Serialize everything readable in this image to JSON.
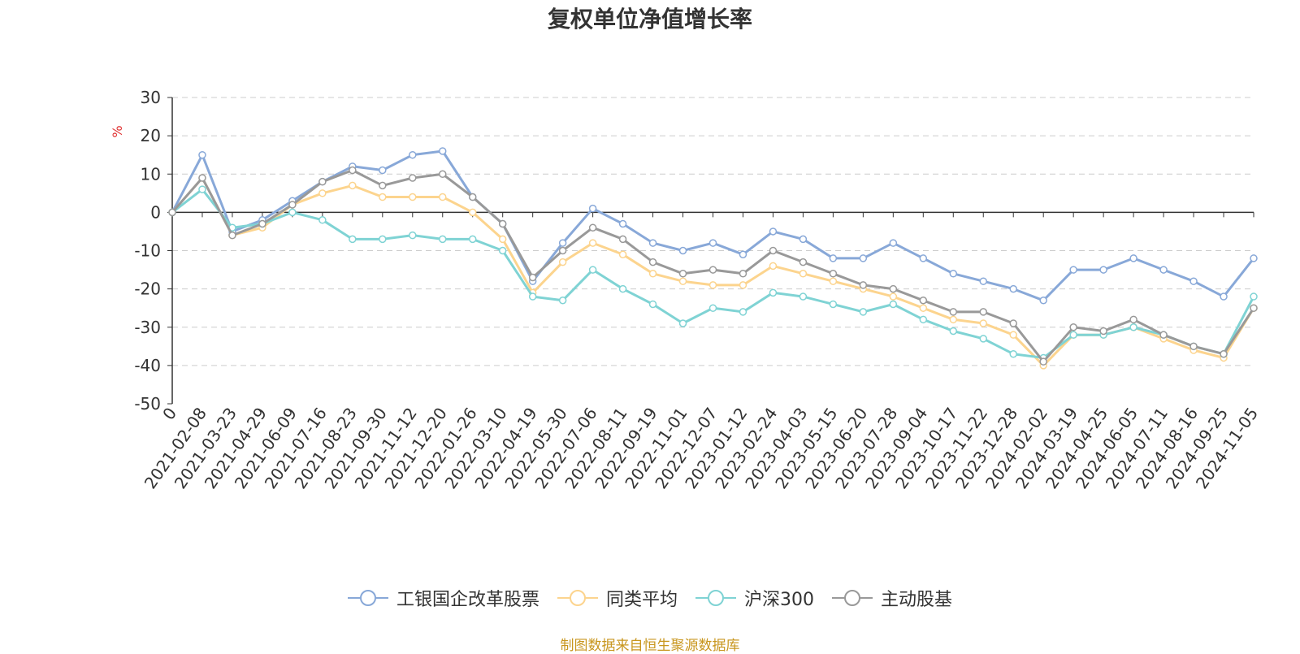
{
  "title": "复权单位净值增长率",
  "source_note": "制图数据来自恒生聚源数据库",
  "chart_data": {
    "type": "line",
    "ylabel": "%",
    "ylim": [
      -50,
      30
    ],
    "yticks": [
      30,
      20,
      10,
      0,
      -10,
      -20,
      -30,
      -40,
      -50
    ],
    "grid": true,
    "legend_position": "bottom",
    "x_ticks": [
      "0",
      "2021-02-08",
      "2021-03-23",
      "2021-04-29",
      "2021-06-09",
      "2021-07-16",
      "2021-08-23",
      "2021-09-30",
      "2021-11-12",
      "2021-12-20",
      "2022-01-26",
      "2022-03-10",
      "2022-04-19",
      "2022-05-30",
      "2022-07-06",
      "2022-08-11",
      "2022-09-19",
      "2022-11-01",
      "2022-12-07",
      "2023-01-12",
      "2023-02-24",
      "2023-04-03",
      "2023-05-15",
      "2023-06-20",
      "2023-07-28",
      "2023-09-04",
      "2023-10-17",
      "2023-11-22",
      "2023-12-28",
      "2024-02-02",
      "2024-03-19",
      "2024-04-25",
      "2024-06-05",
      "2024-07-11",
      "2024-08-16",
      "2024-09-25",
      "2024-11-05"
    ],
    "series": [
      {
        "name": "工银国企改革股票",
        "color": "#88a8d8",
        "values": [
          0,
          15,
          -5,
          -2,
          3,
          8,
          12,
          11,
          15,
          16,
          4,
          -3,
          -18,
          -8,
          1,
          -3,
          -8,
          -10,
          -8,
          -11,
          -5,
          -7,
          -12,
          -12,
          -8,
          -12,
          -16,
          -18,
          -20,
          -23,
          -15,
          -15,
          -12,
          -15,
          -18,
          -22,
          -12
        ]
      },
      {
        "name": "同类平均",
        "color": "#fcd48e",
        "values": [
          0,
          9,
          -6,
          -4,
          2,
          5,
          7,
          4,
          4,
          4,
          0,
          -7,
          -21,
          -13,
          -8,
          -11,
          -16,
          -18,
          -19,
          -19,
          -14,
          -16,
          -18,
          -20,
          -22,
          -25,
          -28,
          -29,
          -32,
          -40,
          -32,
          -32,
          -30,
          -33,
          -36,
          -38,
          -25
        ]
      },
      {
        "name": "沪深300",
        "color": "#7fd3d4",
        "values": [
          0,
          6,
          -4,
          -3,
          0,
          -2,
          -7,
          -7,
          -6,
          -7,
          -7,
          -10,
          -22,
          -23,
          -15,
          -20,
          -24,
          -29,
          -25,
          -26,
          -21,
          -22,
          -24,
          -26,
          -24,
          -28,
          -31,
          -33,
          -37,
          -38,
          -32,
          -32,
          -30,
          -32,
          -35,
          -37,
          -22
        ]
      },
      {
        "name": "主动股基",
        "color": "#999999",
        "values": [
          0,
          9,
          -6,
          -3,
          2,
          8,
          11,
          7,
          9,
          10,
          4,
          -3,
          -17,
          -10,
          -4,
          -7,
          -13,
          -16,
          -15,
          -16,
          -10,
          -13,
          -16,
          -19,
          -20,
          -23,
          -26,
          -26,
          -29,
          -39,
          -30,
          -31,
          -28,
          -32,
          -35,
          -37,
          -25
        ]
      }
    ]
  }
}
